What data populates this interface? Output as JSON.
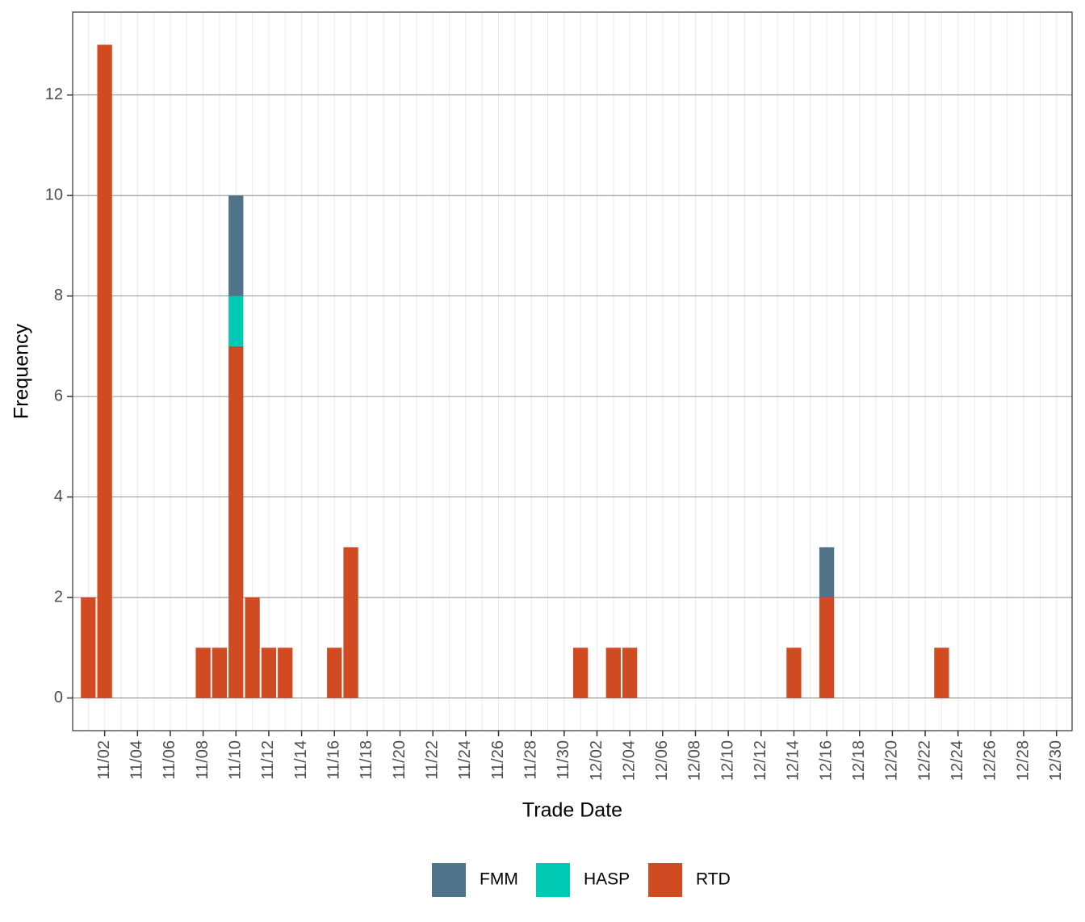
{
  "chart_data": {
    "type": "bar",
    "stacked": true,
    "x_label": "Trade Date",
    "y_label": "Frequency",
    "categories": [
      null,
      "11/02",
      null,
      "11/04",
      null,
      "11/06",
      null,
      "11/08",
      null,
      "11/10",
      null,
      "11/12",
      null,
      "11/14",
      null,
      "11/16",
      null,
      "11/18",
      null,
      "11/20",
      null,
      "11/22",
      null,
      "11/24",
      null,
      "11/26",
      null,
      "11/28",
      null,
      "11/30",
      null,
      "12/02",
      null,
      "12/04",
      null,
      "12/06",
      null,
      "12/08",
      null,
      "12/10",
      null,
      "12/12",
      null,
      "12/14",
      null,
      "12/16",
      null,
      "12/18",
      null,
      "12/20",
      null,
      "12/22",
      null,
      "12/24",
      null,
      "12/26",
      null,
      "12/28",
      null,
      "12/30"
    ],
    "series": [
      {
        "name": "FMM",
        "color": "#4f7489",
        "values": [
          0,
          0,
          0,
          0,
          0,
          0,
          0,
          0,
          0,
          2,
          0,
          0,
          0,
          0,
          0,
          0,
          0,
          0,
          0,
          0,
          0,
          0,
          0,
          0,
          0,
          0,
          0,
          0,
          0,
          0,
          0,
          0,
          0,
          0,
          0,
          0,
          0,
          0,
          0,
          0,
          0,
          0,
          0,
          0,
          0,
          1,
          0,
          0,
          0,
          0,
          0,
          0,
          0,
          0,
          0,
          0,
          0,
          0,
          0,
          0
        ]
      },
      {
        "name": "HASP",
        "color": "#00c9b4",
        "values": [
          0,
          0,
          0,
          0,
          0,
          0,
          0,
          0,
          0,
          1,
          0,
          0,
          0,
          0,
          0,
          0,
          0,
          0,
          0,
          0,
          0,
          0,
          0,
          0,
          0,
          0,
          0,
          0,
          0,
          0,
          0,
          0,
          0,
          0,
          0,
          0,
          0,
          0,
          0,
          0,
          0,
          0,
          0,
          0,
          0,
          0,
          0,
          0,
          0,
          0,
          0,
          0,
          0,
          0,
          0,
          0,
          0,
          0,
          0,
          0
        ]
      },
      {
        "name": "RTD",
        "color": "#d04a22",
        "values": [
          2,
          13,
          0,
          0,
          0,
          0,
          0,
          1,
          1,
          7,
          2,
          1,
          1,
          0,
          0,
          1,
          3,
          0,
          0,
          0,
          0,
          0,
          0,
          0,
          0,
          0,
          0,
          0,
          0,
          0,
          1,
          0,
          1,
          1,
          0,
          0,
          0,
          0,
          0,
          0,
          0,
          0,
          0,
          1,
          0,
          2,
          0,
          0,
          0,
          0,
          0,
          0,
          1,
          0,
          0,
          0,
          0,
          0,
          0,
          0
        ]
      }
    ],
    "ylim": [
      -0.65,
      13.65
    ],
    "yticks": [
      0,
      2,
      4,
      6,
      8,
      10,
      12
    ],
    "grid": true,
    "legend": "bottom"
  }
}
